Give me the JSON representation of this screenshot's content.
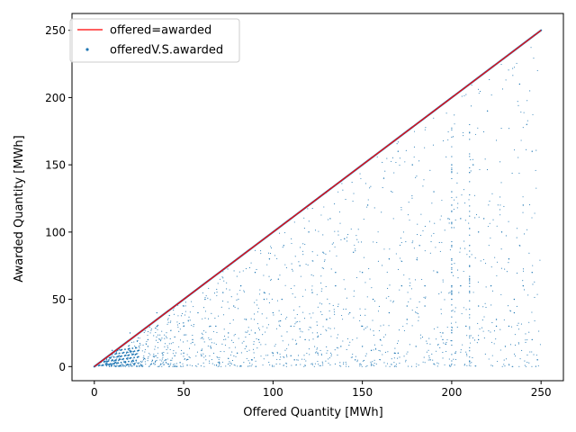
{
  "chart_data": {
    "type": "scatter",
    "title": "",
    "xlabel": "Offered Quantity [MWh]",
    "ylabel": "Awarded Quantity [MWh]",
    "xlim": [
      -12.5,
      262.5
    ],
    "ylim": [
      -10.5,
      262.5
    ],
    "xticks": [
      0,
      50,
      100,
      150,
      200,
      250
    ],
    "yticks": [
      0,
      50,
      100,
      150,
      200,
      250
    ],
    "grid": false,
    "legend_position": "upper left",
    "series": [
      {
        "name": "offered=awarded",
        "kind": "line",
        "color": "#ff0000",
        "x": [
          0,
          250
        ],
        "y": [
          0,
          250
        ]
      },
      {
        "name": "offeredV.S.awarded",
        "kind": "scatter",
        "color": "#1f77b4",
        "note_diagonal": "dense points along y=x from 0 to 250",
        "x": [
          10,
          10,
          10,
          12,
          14,
          15,
          18,
          20,
          20,
          22,
          25,
          28,
          30,
          32,
          35,
          38,
          40,
          42,
          45,
          48,
          50,
          50,
          50,
          52,
          55,
          58,
          60,
          62,
          65,
          68,
          70,
          72,
          75,
          78,
          80,
          82,
          85,
          88,
          90,
          92,
          95,
          98,
          100,
          100,
          103,
          106,
          110,
          112,
          115,
          118,
          120,
          122,
          125,
          128,
          130,
          132,
          135,
          138,
          140,
          143,
          146,
          150,
          150,
          153,
          156,
          160,
          162,
          165,
          168,
          170,
          172,
          175,
          178,
          180,
          182,
          185,
          188,
          190,
          192,
          195,
          198,
          200,
          200,
          200,
          200,
          200,
          200,
          200,
          200,
          202,
          205,
          208,
          210,
          210,
          210,
          210,
          212,
          215,
          215,
          218,
          220,
          222,
          225,
          228,
          230,
          232,
          235,
          238,
          240,
          242,
          245,
          245,
          248,
          245,
          240,
          238,
          235,
          232,
          30,
          40,
          60,
          70,
          90,
          110,
          130,
          150,
          170,
          190,
          35,
          55,
          75,
          95,
          115,
          135,
          155,
          175,
          195,
          215,
          45,
          65,
          85,
          105,
          125,
          145,
          165,
          185,
          205,
          225
        ],
        "y": [
          2,
          5,
          12,
          3,
          8,
          1,
          10,
          12,
          25,
          4,
          15,
          6,
          20,
          2,
          30,
          10,
          5,
          38,
          22,
          3,
          30,
          10,
          45,
          1,
          20,
          40,
          8,
          50,
          15,
          30,
          2,
          55,
          25,
          45,
          10,
          60,
          35,
          5,
          70,
          20,
          50,
          80,
          10,
          40,
          65,
          90,
          30,
          5,
          75,
          20,
          100,
          55,
          10,
          85,
          35,
          110,
          60,
          15,
          95,
          40,
          5,
          30,
          70,
          120,
          50,
          20,
          140,
          80,
          10,
          160,
          60,
          35,
          150,
          15,
          90,
          45,
          5,
          130,
          70,
          25,
          110,
          50,
          60,
          70,
          80,
          90,
          120,
          130,
          150,
          10,
          60,
          30,
          55,
          62,
          75,
          90,
          150,
          20,
          45,
          110,
          190,
          60,
          30,
          100,
          15,
          80,
          40,
          210,
          60,
          180,
          70,
          20,
          5,
          160,
          120,
          90,
          50,
          30,
          15,
          5,
          12,
          3,
          25,
          8,
          35,
          15,
          10,
          2,
          40,
          18,
          6,
          55,
          28,
          70,
          12,
          45,
          20,
          100,
          8,
          30,
          15,
          50,
          22,
          85,
          40,
          60,
          110,
          35
        ]
      }
    ]
  }
}
